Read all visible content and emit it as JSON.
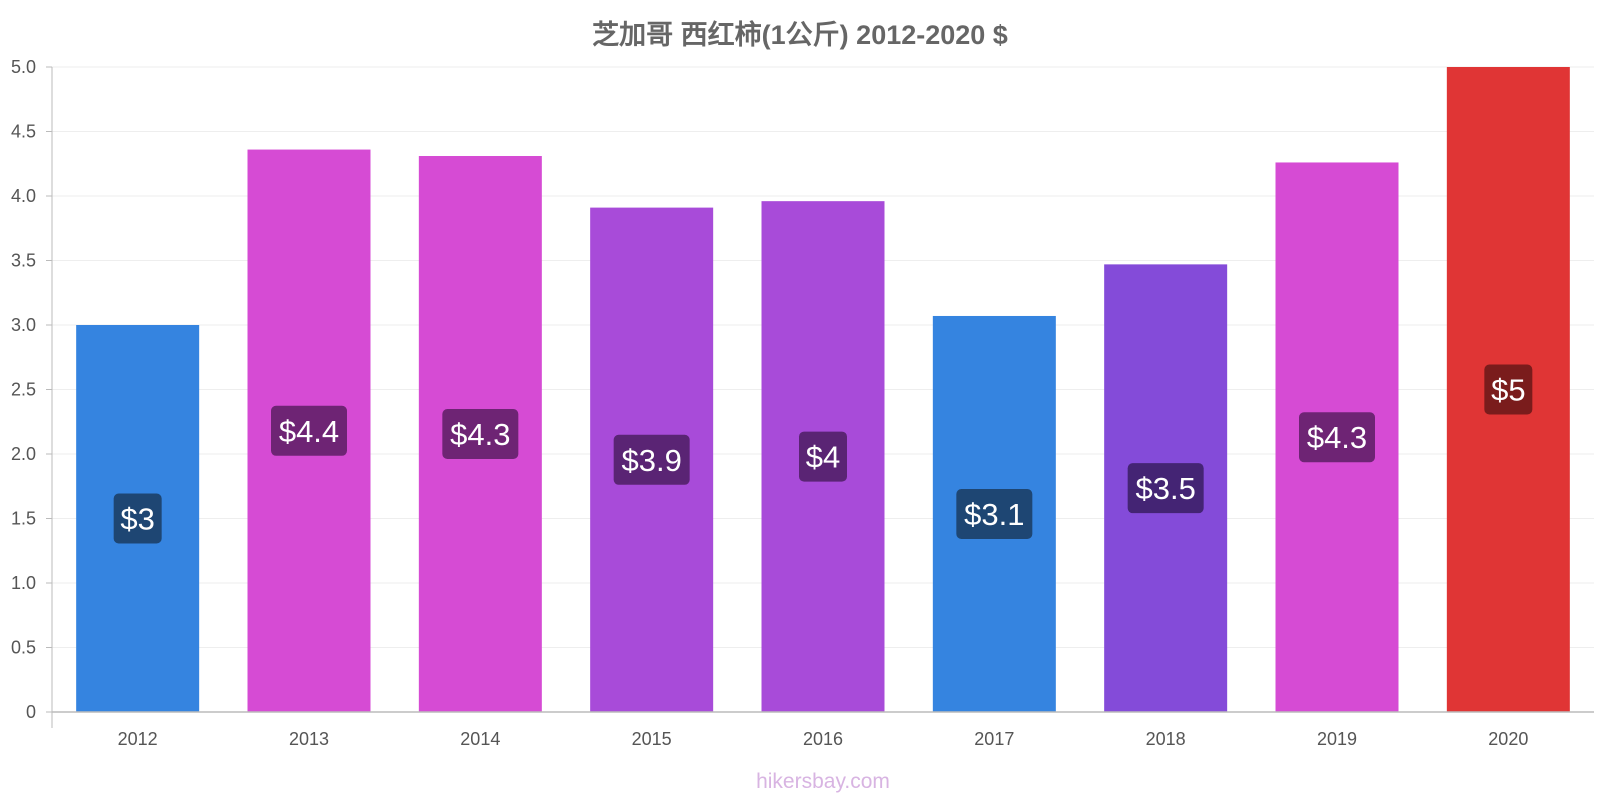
{
  "chart_data": {
    "type": "bar",
    "title": "芝加哥 西红柿(1公斤) 2012-2020 $",
    "xlabel": "",
    "ylabel": "",
    "categories": [
      "2012",
      "2013",
      "2014",
      "2015",
      "2016",
      "2017",
      "2018",
      "2019",
      "2020"
    ],
    "values": [
      3.0,
      4.36,
      4.31,
      3.91,
      3.96,
      3.07,
      3.47,
      4.26,
      5.0
    ],
    "data_labels": [
      "$3",
      "$4.4",
      "$4.3",
      "$3.9",
      "$4",
      "$3.1",
      "$3.5",
      "$4.3",
      "$5"
    ],
    "bar_colors": [
      "#3584e0",
      "#d64bd4",
      "#d64bd4",
      "#a84bd9",
      "#a84bd9",
      "#3584e0",
      "#844bd9",
      "#d64bd4",
      "#e03535"
    ],
    "label_box_colors": [
      "#1e4673",
      "#6e2474",
      "#6e2474",
      "#5a2474",
      "#5a2474",
      "#1e4673",
      "#442474",
      "#6e2474",
      "#7a1c1c"
    ],
    "ylim": [
      0,
      5.0
    ],
    "yticks": [
      0,
      0.5,
      1.0,
      1.5,
      2.0,
      2.5,
      3.0,
      3.5,
      4.0,
      4.5,
      5.0
    ],
    "ytick_labels": [
      "0",
      "0.5",
      "1.0",
      "1.5",
      "2.0",
      "2.5",
      "3.0",
      "3.5",
      "4.0",
      "4.5",
      "5.0"
    ],
    "grid": true,
    "legend": "none"
  },
  "watermark": "hikersbay.com"
}
